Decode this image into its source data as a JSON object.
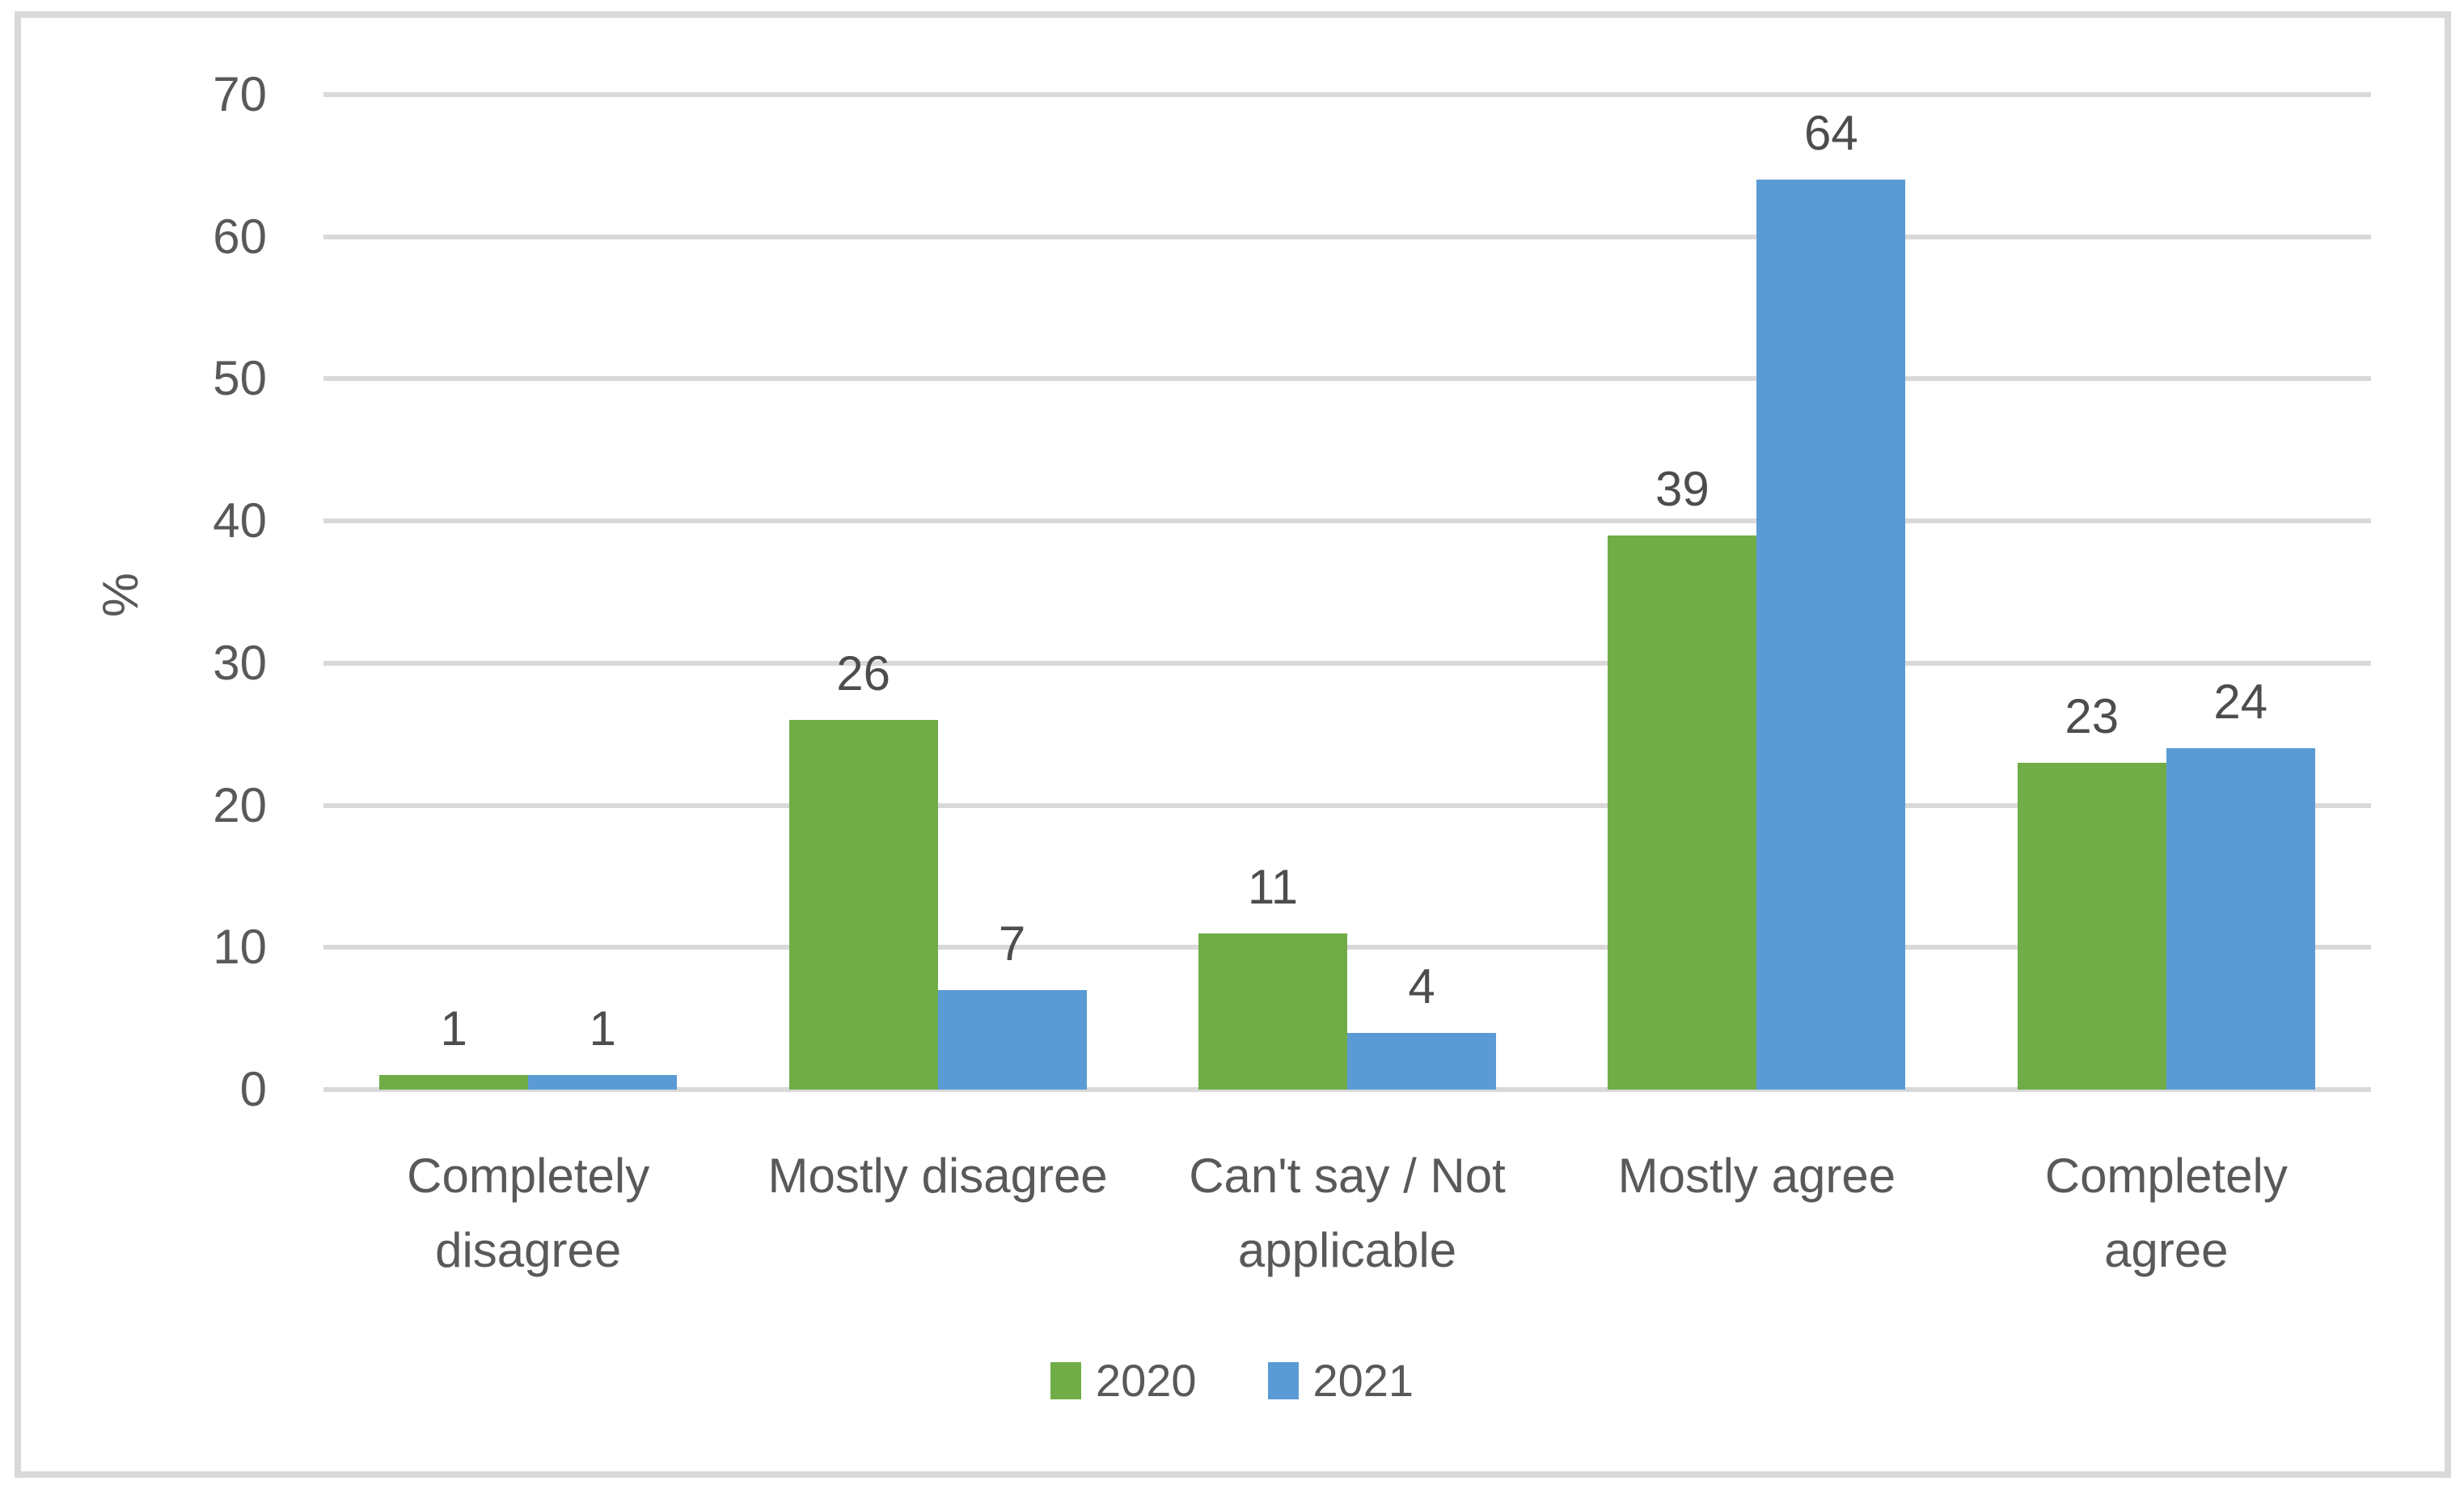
{
  "chart_data": {
    "type": "bar",
    "title": "",
    "xlabel": "",
    "ylabel": "%",
    "categories": [
      "Completely disagree",
      "Mostly disagree",
      "Can't say / Not applicable",
      "Mostly agree",
      "Completely agree"
    ],
    "series": [
      {
        "name": "2020",
        "color": "#70AD47",
        "values": [
          1,
          26,
          11,
          39,
          23
        ]
      },
      {
        "name": "2021",
        "color": "#5B9BD5",
        "values": [
          1,
          7,
          4,
          64,
          24
        ]
      }
    ],
    "ylim": [
      0,
      70
    ],
    "yticks": [
      0,
      10,
      20,
      30,
      40,
      50,
      60,
      70
    ],
    "grid": true,
    "data_labels": true,
    "legend_position": "bottom"
  },
  "colors": {
    "series_2020": "#70AD47",
    "series_2021": "#5B9BD5",
    "gridline": "#D9D9D9",
    "frame_border": "#D9D9D9",
    "axis_text": "#595959",
    "data_label_text": "#4D4D4D",
    "background": "#FFFFFF"
  }
}
